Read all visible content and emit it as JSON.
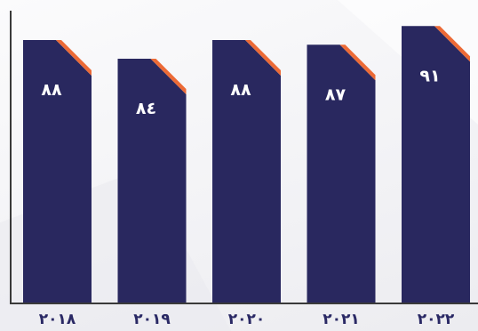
{
  "chart_data": {
    "type": "bar",
    "categories": [
      "٢٠١٨",
      "٢٠١٩",
      "٢٠٢٠",
      "٢٠٢١",
      "٢٠٢٢"
    ],
    "values": [
      88,
      84,
      88,
      87,
      91
    ],
    "value_labels": [
      "٨٨",
      "٨٤",
      "٨٨",
      "٨٧",
      "٩١"
    ],
    "title": "",
    "xlabel": "",
    "ylabel": "",
    "ylim": [
      0,
      100
    ],
    "grid": false,
    "legend": "none"
  },
  "colors": {
    "bar": "#29285f",
    "accent": "#ec6a36",
    "axis": "#3a3a3a",
    "tick_text": "#2a2965",
    "value_text": "#ffffff"
  }
}
